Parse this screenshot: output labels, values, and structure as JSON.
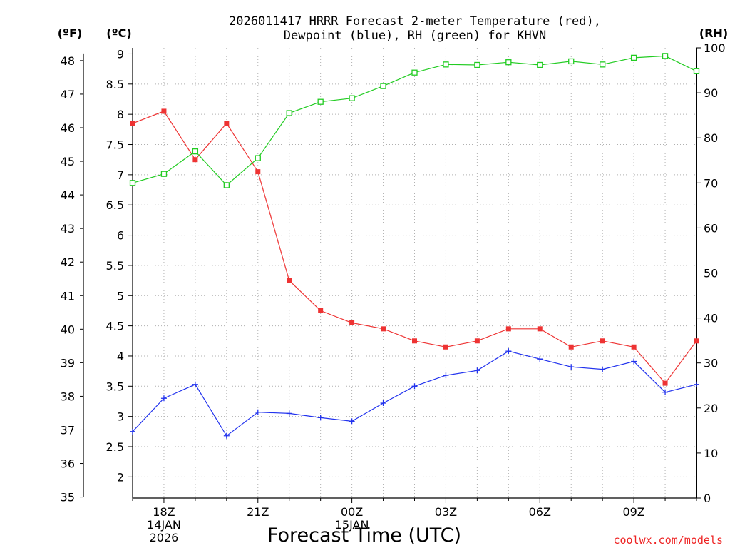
{
  "chart_data": {
    "type": "line",
    "title_line1": "2026011417 HRRR Forecast 2-meter Temperature (red),",
    "title_line2": "Dewpoint (blue), RH (green) for KHVN",
    "xlabel": "Forecast Time (UTC)",
    "credit": "coolwx.com/models",
    "unit_left_f": "(ºF)",
    "unit_left_c": "(ºC)",
    "unit_right": "(RH)",
    "hours": [
      17,
      18,
      19,
      20,
      21,
      22,
      23,
      24,
      25,
      26,
      27,
      28,
      29,
      30,
      31,
      32,
      33,
      34,
      35
    ],
    "x_ticks": [
      {
        "hour": 18,
        "label": "18Z",
        "label2": "14JAN",
        "label3": "2026"
      },
      {
        "hour": 21,
        "label": "21Z"
      },
      {
        "hour": 24,
        "label": "00Z",
        "label2": "15JAN"
      },
      {
        "hour": 27,
        "label": "03Z"
      },
      {
        "hour": 30,
        "label": "06Z"
      },
      {
        "hour": 33,
        "label": "09Z"
      }
    ],
    "y_celsius_range": [
      1.65,
      9.1
    ],
    "y_celsius_ticks": [
      2,
      2.5,
      3,
      3.5,
      4,
      4.5,
      5,
      5.5,
      6,
      6.5,
      7,
      7.5,
      8,
      8.5,
      9
    ],
    "y_fahrenheit_ticks": [
      35,
      36,
      37,
      38,
      39,
      40,
      41,
      42,
      43,
      44,
      45,
      46,
      47,
      48
    ],
    "y_rh_range": [
      0,
      100
    ],
    "y_rh_ticks": [
      0,
      10,
      20,
      30,
      40,
      50,
      60,
      70,
      80,
      90,
      100
    ],
    "series": [
      {
        "name": "Temperature",
        "color": "#ee3333",
        "unit": "C",
        "marker": "filled-square",
        "values": [
          7.85,
          8.05,
          7.25,
          7.85,
          7.05,
          5.25,
          4.75,
          4.55,
          4.45,
          4.25,
          4.15,
          4.25,
          4.45,
          4.45,
          4.15,
          4.25,
          4.15,
          3.55,
          4.25
        ]
      },
      {
        "name": "Dewpoint",
        "color": "#2233ee",
        "unit": "C",
        "marker": "plus",
        "values": [
          2.75,
          3.3,
          3.53,
          2.68,
          3.07,
          3.05,
          2.98,
          2.92,
          3.22,
          3.5,
          3.68,
          3.76,
          4.08,
          3.95,
          3.82,
          3.78,
          3.91,
          3.4,
          3.53
        ]
      },
      {
        "name": "RH",
        "color": "#22cc22",
        "unit": "RH",
        "marker": "open-square",
        "values": [
          70,
          72,
          77,
          69.5,
          75.5,
          85.5,
          88,
          88.8,
          91.5,
          94.5,
          96.3,
          96.2,
          96.8,
          96.2,
          97,
          96.3,
          97.8,
          98.2,
          94.8
        ]
      }
    ]
  }
}
